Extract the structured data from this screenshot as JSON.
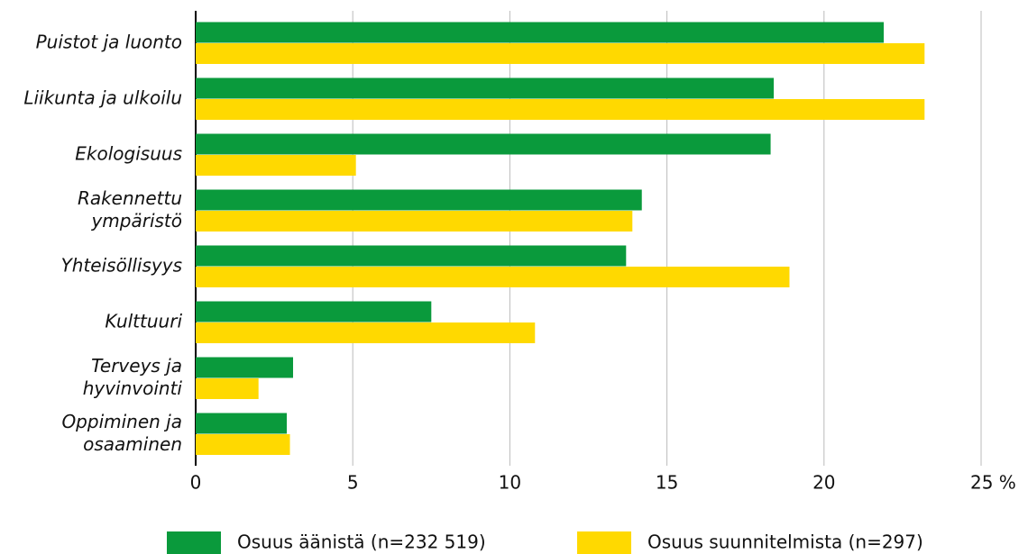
{
  "chart_data": {
    "type": "barh",
    "categories": [
      "Puistot ja luonto",
      "Liikunta ja ulkoilu",
      "Ekologisuus",
      "Rakennettu ympäristö",
      "Yhteisöllisyys",
      "Kulttuuri",
      "Terveys ja hyvinvointi",
      "Oppiminen ja osaaminen"
    ],
    "series": [
      {
        "name": "Osuus äänistä (n=232 519)",
        "color": "#0a9a3c",
        "values": [
          21.9,
          18.4,
          18.3,
          14.2,
          13.7,
          7.5,
          3.1,
          2.9
        ]
      },
      {
        "name": "Osuus suunnitelmista (n=297)",
        "color": "#ffd900",
        "values": [
          23.2,
          23.2,
          5.1,
          13.9,
          18.9,
          10.8,
          2.0,
          3.0
        ]
      }
    ],
    "xlim": [
      0,
      25
    ],
    "xticks": [
      0,
      5,
      10,
      15,
      20,
      {
        "value": 25,
        "label": "25 %"
      }
    ],
    "grid": true
  }
}
